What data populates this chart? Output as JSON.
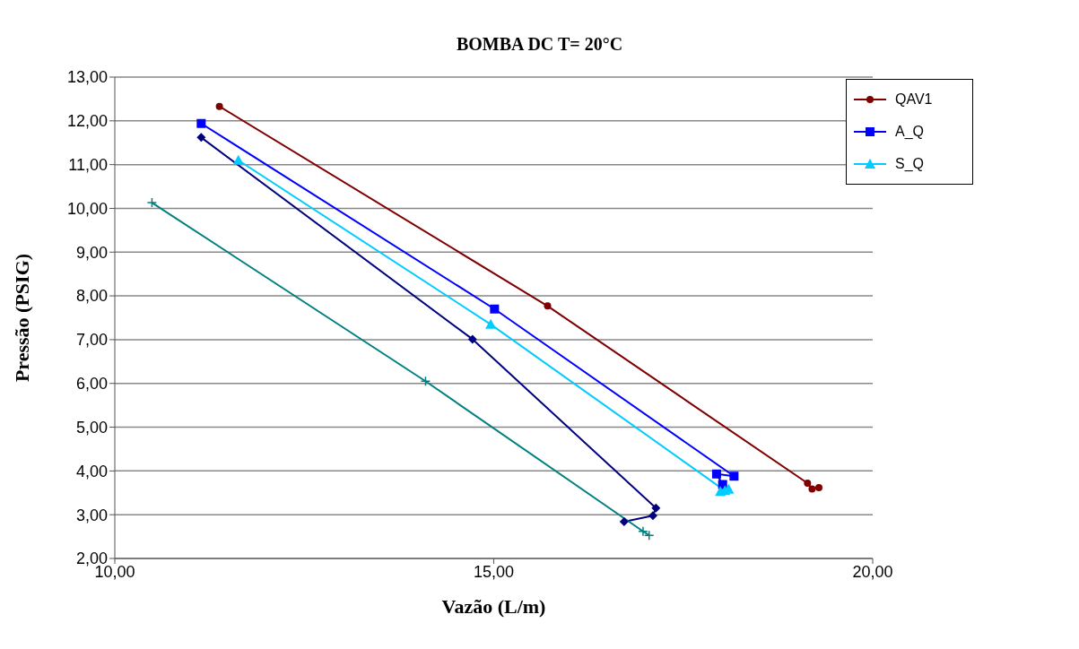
{
  "chart_data": {
    "type": "line",
    "title": "BOMBA DC T= 20°C",
    "xlabel": "Vazão (L/m)",
    "ylabel": "Pressão (PSIG)",
    "xlim": [
      10,
      20
    ],
    "xticks": [
      {
        "value": 10,
        "label": "10,00"
      },
      {
        "value": 15,
        "label": "15,00"
      },
      {
        "value": 20,
        "label": "20,00"
      }
    ],
    "ylim": [
      2,
      13
    ],
    "yticks": [
      {
        "value": 2,
        "label": "2,00"
      },
      {
        "value": 3,
        "label": "3,00"
      },
      {
        "value": 4,
        "label": "4,00"
      },
      {
        "value": 5,
        "label": "5,00"
      },
      {
        "value": 6,
        "label": "6,00"
      },
      {
        "value": 7,
        "label": "7,00"
      },
      {
        "value": 8,
        "label": "8,00"
      },
      {
        "value": 9,
        "label": "9,00"
      },
      {
        "value": 10,
        "label": "10,00"
      },
      {
        "value": 11,
        "label": "11,00"
      },
      {
        "value": 12,
        "label": "12,00"
      },
      {
        "value": 13,
        "label": "13,00"
      }
    ],
    "grid": "y",
    "legend": "top right",
    "line_style": "solid",
    "series": [
      {
        "name": "QAV1",
        "color": "#800000",
        "marker": "circle",
        "x": [
          11.38,
          15.71,
          19.14,
          19.2,
          19.29
        ],
        "values": [
          12.33,
          7.77,
          3.72,
          3.59,
          3.62
        ]
      },
      {
        "color": "#000080",
        "marker": "diamond",
        "x": [
          11.14,
          14.72,
          17.14,
          17.1,
          16.72
        ],
        "values": [
          11.62,
          7.01,
          3.15,
          2.98,
          2.84
        ]
      },
      {
        "color": "#008080",
        "marker": "cross",
        "x": [
          10.49,
          14.1,
          16.97,
          17.05
        ],
        "values": [
          10.13,
          6.05,
          2.62,
          2.53
        ]
      },
      {
        "name": "A_Q",
        "color": "#0000ff",
        "marker": "square",
        "x": [
          11.14,
          15.01,
          18.17,
          17.94,
          18.02
        ],
        "values": [
          11.94,
          7.7,
          3.88,
          3.93,
          3.69
        ]
      },
      {
        "name": "S_Q",
        "color": "#00ccff",
        "marker": "triangle",
        "x": [
          11.63,
          14.96,
          18.05,
          17.99,
          18.1
        ],
        "values": [
          11.1,
          7.35,
          3.55,
          3.53,
          3.58
        ]
      }
    ]
  }
}
